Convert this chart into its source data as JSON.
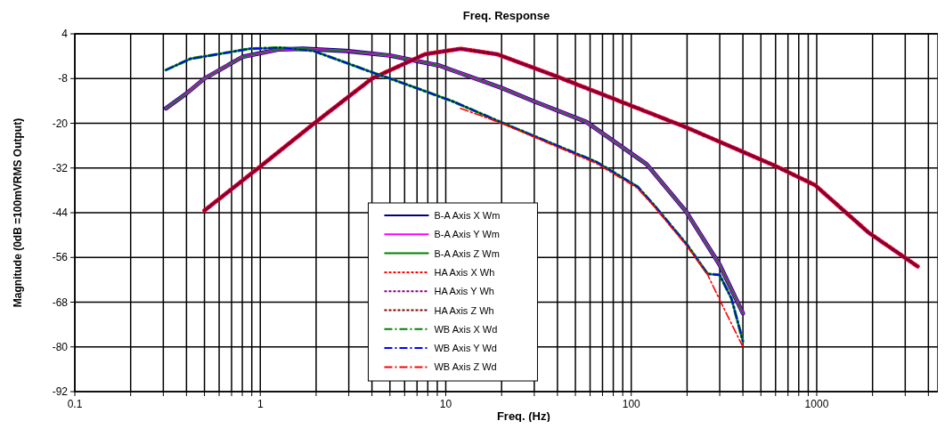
{
  "chart_data": {
    "type": "line",
    "title": "Freq. Response",
    "xlabel": "Freq. (Hz)",
    "ylabel": "Magnitude (0dB =100mVRMS Output)",
    "log": "x",
    "grid": true,
    "legend": "bottom",
    "xlim": [
      0.1,
      4500
    ],
    "ylim": [
      -92,
      4
    ],
    "xticks": [
      0.1,
      {
        "value": 0.2,
        "label": null
      },
      {
        "value": 0.3,
        "label": null
      },
      {
        "value": 0.4,
        "label": null
      },
      {
        "value": 0.5,
        "label": null
      },
      {
        "value": 0.6,
        "label": null
      },
      {
        "value": 0.7,
        "label": null
      },
      {
        "value": 0.8,
        "label": null
      },
      {
        "value": 0.9,
        "label": null
      },
      1,
      {
        "value": 2,
        "label": null
      },
      {
        "value": 3,
        "label": null
      },
      {
        "value": 4,
        "label": null
      },
      {
        "value": 5,
        "label": null
      },
      {
        "value": 6,
        "label": null
      },
      {
        "value": 7,
        "label": null
      },
      {
        "value": 8,
        "label": null
      },
      {
        "value": 9,
        "label": null
      },
      10,
      {
        "value": 20,
        "label": null
      },
      {
        "value": 30,
        "label": null
      },
      {
        "value": 40,
        "label": null
      },
      {
        "value": 50,
        "label": null
      },
      {
        "value": 60,
        "label": null
      },
      {
        "value": 70,
        "label": null
      },
      {
        "value": 80,
        "label": null
      },
      {
        "value": 90,
        "label": null
      },
      100,
      {
        "value": 200,
        "label": null
      },
      {
        "value": 300,
        "label": null
      },
      {
        "value": 400,
        "label": null
      },
      {
        "value": 500,
        "label": null
      },
      {
        "value": 600,
        "label": null
      },
      {
        "value": 700,
        "label": null
      },
      {
        "value": 800,
        "label": null
      },
      {
        "value": 900,
        "label": null
      },
      1000,
      {
        "value": 2000,
        "label": null
      },
      {
        "value": 3000,
        "label": null
      },
      {
        "value": 4000,
        "label": null
      }
    ],
    "yticks": [
      4,
      -8,
      -20,
      -32,
      -44,
      -56,
      -68,
      -80,
      -92
    ],
    "series": [
      {
        "name": "B-A Axis X Wm",
        "color": "#000080",
        "line_style": "solid",
        "x": [
          0.31,
          0.4,
          0.5,
          0.8,
          1.25,
          1.7,
          2.9,
          5,
          9.2,
          20,
          29.5,
          57,
          121,
          197,
          300,
          400
        ],
        "values": [
          -16,
          -12,
          -8,
          -2.2,
          -0.2,
          0,
          -0.6,
          -1.8,
          -4.5,
          -10.5,
          -14,
          -19.6,
          -31,
          -43.6,
          -58,
          -71
        ]
      },
      {
        "name": "B-A Axis Y Wm",
        "color": "#ff00ff",
        "line_style": "solid",
        "x": [
          0.31,
          0.4,
          0.5,
          0.8,
          1.25,
          1.7,
          2.9,
          5,
          9.2,
          20,
          29.5,
          57,
          121,
          197,
          300,
          400
        ],
        "values": [
          -16,
          -12,
          -8,
          -2.2,
          -0.2,
          0,
          -0.6,
          -1.8,
          -4.5,
          -10.5,
          -14,
          -19.6,
          -31,
          -43.6,
          -58,
          -71
        ]
      },
      {
        "name": "B-A Axis Z Wm",
        "color": "#008000",
        "line_style": "solid",
        "x": [
          0.31,
          0.4,
          0.5,
          0.8,
          1.25,
          1.7,
          2.9,
          5,
          9.2,
          20,
          29.5,
          57,
          121,
          197,
          300,
          400
        ],
        "values": [
          -16,
          -12,
          -8,
          -2.2,
          -0.2,
          0,
          -0.6,
          -1.8,
          -4.5,
          -10.5,
          -14,
          -19.6,
          -31,
          -43.6,
          -58,
          -71
        ]
      },
      {
        "name": "HA Axis X Wh",
        "color": "#ff0000",
        "line_style": "dotted",
        "x": [
          0.5,
          1,
          2,
          4,
          7.7,
          12,
          19,
          39,
          86,
          196,
          590,
          980,
          1900,
          3500
        ],
        "values": [
          -43.4,
          -31.6,
          -19.6,
          -8,
          -1.5,
          0,
          -1.5,
          -7.3,
          -14,
          -21,
          -31.3,
          -36.6,
          -49.3,
          -58.4
        ]
      },
      {
        "name": "HA Axis Y Wh",
        "color": "#800080",
        "line_style": "dotted",
        "x": [
          0.5,
          1,
          2,
          4,
          7.7,
          12,
          19,
          39,
          86,
          196,
          590,
          980,
          1900,
          3500
        ],
        "values": [
          -43.4,
          -31.6,
          -19.6,
          -8,
          -1.5,
          0,
          -1.5,
          -7.3,
          -14,
          -21,
          -31.3,
          -36.6,
          -49.3,
          -58.4
        ]
      },
      {
        "name": "HA Axis Z Wh",
        "color": "#800000",
        "line_style": "dotted",
        "x": [
          0.5,
          1,
          2,
          4,
          7.7,
          12,
          19,
          39,
          86,
          196,
          590,
          980,
          1900,
          3500
        ],
        "values": [
          -43.4,
          -31.6,
          -19.6,
          -8,
          -1.5,
          0,
          -1.5,
          -7.3,
          -14,
          -21,
          -31.3,
          -36.6,
          -49.3,
          -58.4
        ]
      },
      {
        "name": "WB Axis X Wd",
        "color": "#008000",
        "line_style": "dashed",
        "x": [
          0.31,
          0.42,
          0.88,
          1.3,
          1.94,
          3.7,
          6.4,
          11,
          20,
          65,
          108,
          133,
          200,
          258,
          300,
          347,
          400
        ],
        "values": [
          -5.7,
          -2.7,
          0,
          0.3,
          -0.6,
          -5.7,
          -9.9,
          -14.2,
          -19.8,
          -30.4,
          -37,
          -42,
          -52.6,
          -60.4,
          -60.7,
          -67,
          -78.5
        ]
      },
      {
        "name": "WB Axis Y Wd",
        "color": "#0000ff",
        "line_style": "dashed",
        "x": [
          0.31,
          0.42,
          0.88,
          1.3,
          1.94,
          3.7,
          6.4,
          11,
          20,
          65,
          108,
          133,
          200,
          258,
          300,
          347,
          400
        ],
        "values": [
          -5.7,
          -2.7,
          0,
          0.3,
          -0.6,
          -5.7,
          -9.9,
          -14.2,
          -19.8,
          -30.4,
          -37,
          -42,
          -52.6,
          -60.4,
          -60.7,
          -67,
          -78.5
        ]
      },
      {
        "name": "WB Axis Z Wd",
        "color": "#ff0000",
        "line_style": "dashed",
        "x": [
          12,
          20,
          65,
          108,
          133,
          200,
          258,
          300,
          400
        ],
        "values": [
          -16,
          -20,
          -30.8,
          -37.4,
          -42.4,
          -53,
          -60.6,
          -67.4,
          -80
        ]
      }
    ]
  }
}
